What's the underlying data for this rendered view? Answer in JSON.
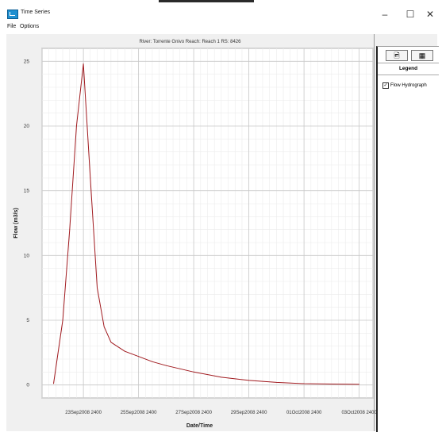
{
  "window": {
    "title": "Time Series",
    "controls": {
      "minimize": "–",
      "maximize": "☐",
      "close": "✕"
    }
  },
  "menu": {
    "items": [
      "File",
      "Options"
    ]
  },
  "tabs": [
    {
      "icon": "chart-tab-icon",
      "glyph": "🖻"
    },
    {
      "icon": "table-tab-icon",
      "glyph": "▦"
    }
  ],
  "legend": {
    "header": "Legend",
    "items": [
      {
        "label": "Flow Hydrograph",
        "checked": true,
        "check_glyph": "✓",
        "color": "#a0191e"
      }
    ]
  },
  "chart_data": {
    "type": "line",
    "title": "River: Torrente Gnivo  Reach: Reach 1  RS: 8426",
    "xlabel": "Date/Time",
    "ylabel": "Flow (m3/s)",
    "x_is_date": true,
    "xlim": [
      "2008-09-22T12:00",
      "2008-10-04T12:00"
    ],
    "ylim": [
      -1,
      26
    ],
    "x_ticks": [
      {
        "value": "2008-09-23T24:00",
        "label": "23Sep2008 2400"
      },
      {
        "value": "2008-09-25T24:00",
        "label": "25Sep2008 2400"
      },
      {
        "value": "2008-09-27T24:00",
        "label": "27Sep2008 2400"
      },
      {
        "value": "2008-09-29T24:00",
        "label": "29Sep2008 2400"
      },
      {
        "value": "2008-10-01T24:00",
        "label": "01Oct2008 2400"
      },
      {
        "value": "2008-10-03T24:00",
        "label": "03Oct2008 2400"
      }
    ],
    "y_ticks": [
      0,
      5,
      10,
      15,
      20,
      25
    ],
    "grid": true,
    "series": [
      {
        "name": "Flow Hydrograph",
        "color": "#a0191e",
        "points": [
          [
            "2008-09-22T22:00",
            0.1
          ],
          [
            "2008-09-23T06:00",
            5.0
          ],
          [
            "2008-09-23T12:00",
            12.0
          ],
          [
            "2008-09-23T18:00",
            20.0
          ],
          [
            "2008-09-24T00:00",
            24.8
          ],
          [
            "2008-09-24T06:00",
            16.0
          ],
          [
            "2008-09-24T12:00",
            7.5
          ],
          [
            "2008-09-24T18:00",
            4.5
          ],
          [
            "2008-09-25T00:00",
            3.3
          ],
          [
            "2008-09-25T12:00",
            2.6
          ],
          [
            "2008-09-26T00:00",
            2.2
          ],
          [
            "2008-09-26T12:00",
            1.8
          ],
          [
            "2008-09-27T00:00",
            1.5
          ],
          [
            "2008-09-28T00:00",
            1.0
          ],
          [
            "2008-09-29T00:00",
            0.6
          ],
          [
            "2008-09-30T00:00",
            0.35
          ],
          [
            "2008-10-01T00:00",
            0.2
          ],
          [
            "2008-10-02T00:00",
            0.1
          ],
          [
            "2008-10-03T00:00",
            0.07
          ],
          [
            "2008-10-04T00:00",
            0.05
          ]
        ]
      }
    ]
  }
}
